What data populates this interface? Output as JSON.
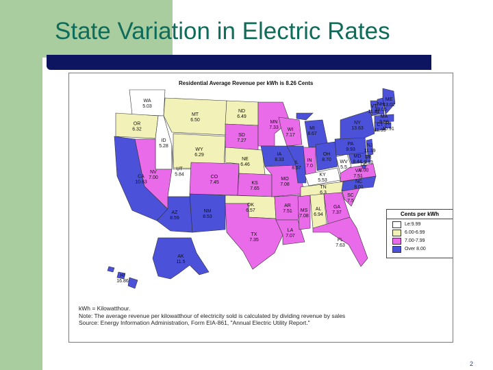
{
  "slide": {
    "title": "State Variation in Electric Rates",
    "page_number": "2"
  },
  "map": {
    "heading": "Residential Average Revenue per kWh is 8.26 Cents",
    "colors": {
      "bin1": "#ffffff",
      "bin2": "#f2f2b8",
      "bin3": "#e96be9",
      "bin4": "#4b52d9"
    },
    "legend": {
      "title": "Cents per kWh",
      "items": [
        {
          "label": "Le:9.99",
          "color": "#ffffff"
        },
        {
          "label": "6.00-6.99",
          "color": "#f2f2b8"
        },
        {
          "label": "7.00-7.99",
          "color": "#e96be9"
        },
        {
          "label": "Over 8.00",
          "color": "#4b52d9"
        }
      ]
    },
    "states": [
      {
        "code": "WA",
        "value": "5.03",
        "bin": 1
      },
      {
        "code": "OR",
        "value": "6.32",
        "bin": 2
      },
      {
        "code": "ID",
        "value": "5.28",
        "bin": 1
      },
      {
        "code": "MT",
        "value": "6.50",
        "bin": 2
      },
      {
        "code": "ND",
        "value": "6.49",
        "bin": 2
      },
      {
        "code": "MN",
        "value": "7.33",
        "bin": 3
      },
      {
        "code": "SD",
        "value": "7.27",
        "bin": 3
      },
      {
        "code": "WY",
        "value": "6.29",
        "bin": 2
      },
      {
        "code": "NE",
        "value": "6.46",
        "bin": 2
      },
      {
        "code": "NV",
        "value": "7.00",
        "bin": 3
      },
      {
        "code": "UT",
        "value": "5.84",
        "bin": 1
      },
      {
        "code": "CO",
        "value": "7.45",
        "bin": 3
      },
      {
        "code": "CA",
        "value": "10.63",
        "bin": 4
      },
      {
        "code": "AZ",
        "value": "8.59",
        "bin": 4
      },
      {
        "code": "NM",
        "value": "8.53",
        "bin": 4
      },
      {
        "code": "KS",
        "value": "7.65",
        "bin": 3
      },
      {
        "code": "OK",
        "value": "6.57",
        "bin": 2
      },
      {
        "code": "TX",
        "value": "7.35",
        "bin": 3
      },
      {
        "code": "IA",
        "value": "8.33",
        "bin": 4
      },
      {
        "code": "MO",
        "value": "7.08",
        "bin": 3
      },
      {
        "code": "AR",
        "value": "7.51",
        "bin": 3
      },
      {
        "code": "LA",
        "value": "7.07",
        "bin": 3
      },
      {
        "code": "WI",
        "value": "7.17",
        "bin": 3
      },
      {
        "code": "IL",
        "value": "8.57",
        "bin": 4
      },
      {
        "code": "MI",
        "value": "8.67",
        "bin": 4
      },
      {
        "code": "IN",
        "value": "7.0",
        "bin": 3
      },
      {
        "code": "OH",
        "value": "8.70",
        "bin": 4
      },
      {
        "code": "KY",
        "value": "5.53",
        "bin": 1
      },
      {
        "code": "TN",
        "value": "6.3",
        "bin": 2
      },
      {
        "code": "MS",
        "value": "7.08",
        "bin": 3
      },
      {
        "code": "AL",
        "value": "6.94",
        "bin": 2
      },
      {
        "code": "GA",
        "value": "7.37",
        "bin": 3
      },
      {
        "code": "FL",
        "value": "7.63",
        "bin": 3
      },
      {
        "code": "SC",
        "value": "7.5",
        "bin": 3
      },
      {
        "code": "NC",
        "value": "8.01",
        "bin": 4
      },
      {
        "code": "VA",
        "value": "7.51",
        "bin": 3
      },
      {
        "code": "WV",
        "value": "5.5",
        "bin": 1
      },
      {
        "code": "PA",
        "value": "9.93",
        "bin": 4
      },
      {
        "code": "NY",
        "value": "13.63",
        "bin": 4
      },
      {
        "code": "VT",
        "value": "11.81",
        "bin": 4
      },
      {
        "code": "NH",
        "value": "13.05",
        "bin": 4
      },
      {
        "code": "ME",
        "value": "13.02",
        "bin": 4
      },
      {
        "code": "MA",
        "value": "9.59",
        "bin": 4
      },
      {
        "code": "RI",
        "value": "10.91",
        "bin": 4
      },
      {
        "code": "CT",
        "value": "11.95",
        "bin": 4
      },
      {
        "code": "NJ",
        "value": "11.39",
        "bin": 4
      },
      {
        "code": "DE",
        "value": "9.13",
        "bin": 4
      },
      {
        "code": "MD",
        "value": "8.44",
        "bin": 4
      },
      {
        "code": "DC",
        "value": "8.00",
        "bin": 4
      },
      {
        "code": "AK",
        "value": "11.5",
        "bin": 4
      },
      {
        "code": "HI",
        "value": "16.86",
        "bin": 4
      }
    ],
    "notes": [
      "kWh = Kilowatthour.",
      "Note: The average revenue per kilowatthour of electricity sold is calculated by dividing revenue by sales",
      "Source: Energy Information Administration, Form EIA-861, \"Annual Electric Utility Report.\""
    ]
  }
}
